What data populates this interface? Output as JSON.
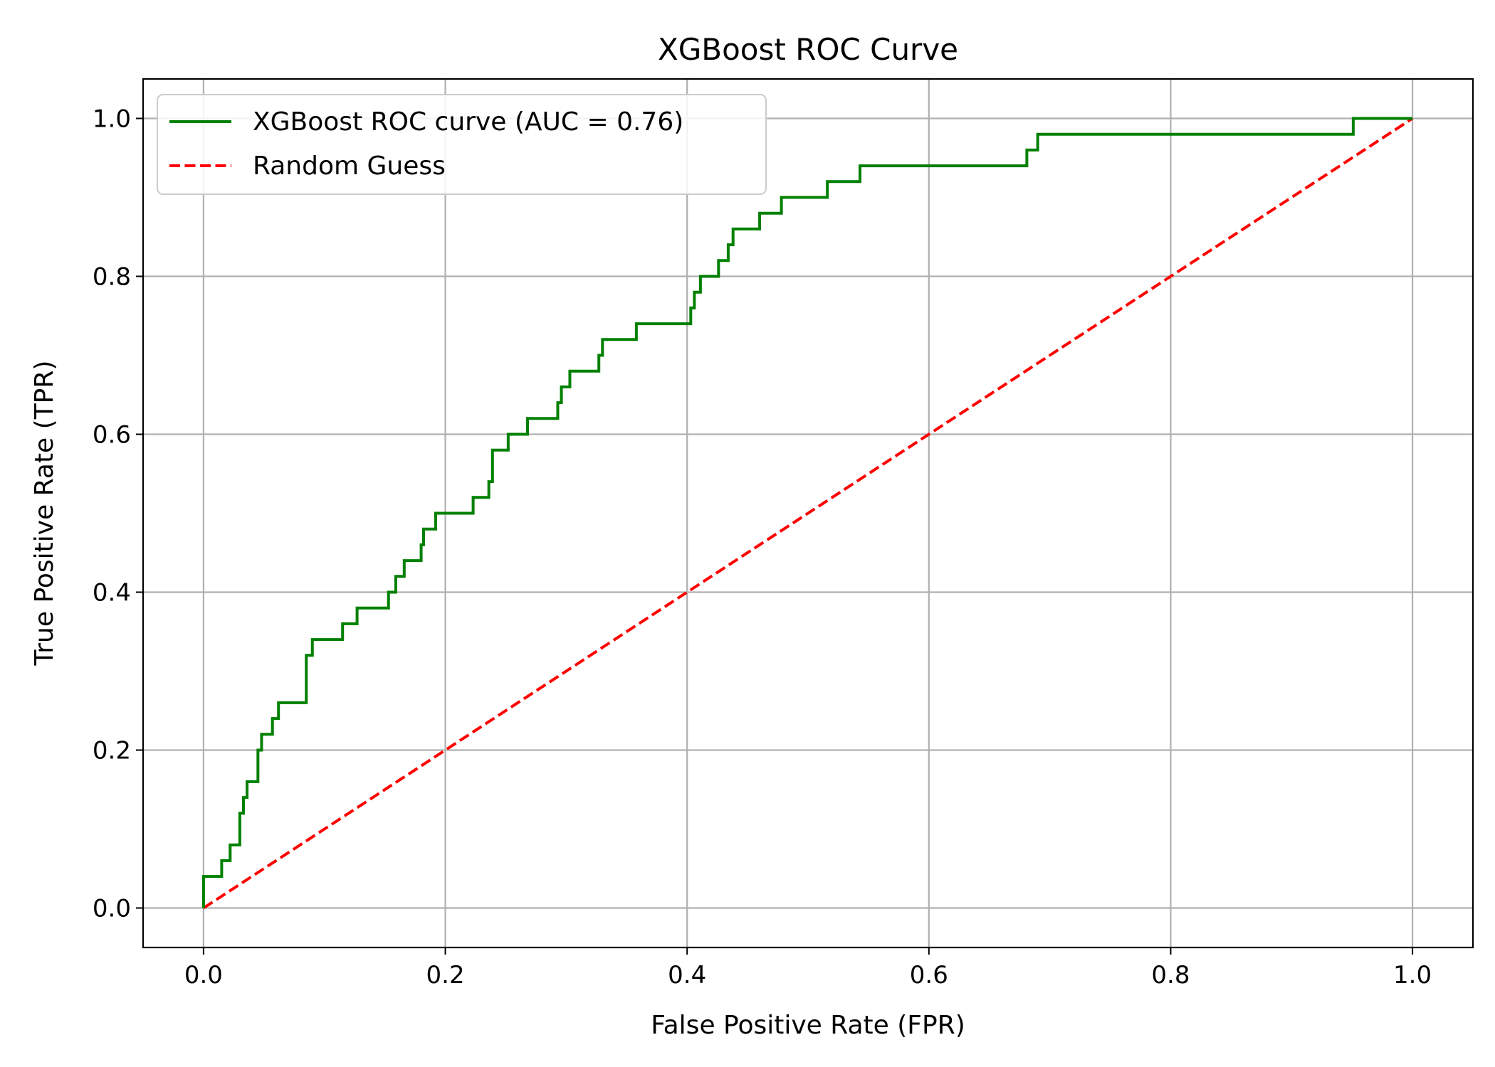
{
  "chart_data": {
    "type": "line",
    "title": "XGBoost ROC Curve",
    "xlabel": "False Positive Rate (FPR)",
    "ylabel": "True Positive Rate (TPR)",
    "xlim": [
      -0.05,
      1.05
    ],
    "ylim": [
      -0.05,
      1.05
    ],
    "xticks": [
      0.0,
      0.2,
      0.4,
      0.6,
      0.8,
      1.0
    ],
    "yticks": [
      0.0,
      0.2,
      0.4,
      0.6,
      0.8,
      1.0
    ],
    "xtick_labels": [
      "0.0",
      "0.2",
      "0.4",
      "0.6",
      "0.8",
      "1.0"
    ],
    "ytick_labels": [
      "0.0",
      "0.2",
      "0.4",
      "0.6",
      "0.8",
      "1.0"
    ],
    "grid": true,
    "legend": "top-left",
    "series": [
      {
        "name": "XGBoost ROC curve (AUC = 0.76)",
        "color": "#008000",
        "style": "solid",
        "x": [
          0.0,
          0.0,
          0.015,
          0.015,
          0.022,
          0.022,
          0.03,
          0.03,
          0.033,
          0.033,
          0.036,
          0.036,
          0.045,
          0.045,
          0.048,
          0.048,
          0.057,
          0.057,
          0.062,
          0.062,
          0.085,
          0.085,
          0.09,
          0.09,
          0.115,
          0.115,
          0.127,
          0.127,
          0.153,
          0.153,
          0.159,
          0.159,
          0.166,
          0.166,
          0.18,
          0.18,
          0.182,
          0.182,
          0.192,
          0.192,
          0.223,
          0.223,
          0.236,
          0.236,
          0.239,
          0.239,
          0.252,
          0.252,
          0.268,
          0.268,
          0.293,
          0.293,
          0.296,
          0.296,
          0.303,
          0.303,
          0.327,
          0.327,
          0.33,
          0.33,
          0.358,
          0.358,
          0.403,
          0.403,
          0.406,
          0.406,
          0.411,
          0.411,
          0.426,
          0.426,
          0.434,
          0.434,
          0.438,
          0.438,
          0.46,
          0.46,
          0.478,
          0.478,
          0.516,
          0.516,
          0.543,
          0.543,
          0.681,
          0.681,
          0.69,
          0.69,
          0.951,
          0.951,
          1.0
        ],
        "y": [
          0.0,
          0.04,
          0.04,
          0.06,
          0.06,
          0.08,
          0.08,
          0.12,
          0.12,
          0.14,
          0.14,
          0.16,
          0.16,
          0.2,
          0.2,
          0.22,
          0.22,
          0.24,
          0.24,
          0.26,
          0.26,
          0.32,
          0.32,
          0.34,
          0.34,
          0.36,
          0.36,
          0.38,
          0.38,
          0.4,
          0.4,
          0.42,
          0.42,
          0.44,
          0.44,
          0.46,
          0.46,
          0.48,
          0.48,
          0.5,
          0.5,
          0.52,
          0.52,
          0.54,
          0.54,
          0.58,
          0.58,
          0.6,
          0.6,
          0.62,
          0.62,
          0.64,
          0.64,
          0.66,
          0.66,
          0.68,
          0.68,
          0.7,
          0.7,
          0.72,
          0.72,
          0.74,
          0.74,
          0.76,
          0.76,
          0.78,
          0.78,
          0.8,
          0.8,
          0.82,
          0.82,
          0.84,
          0.84,
          0.86,
          0.86,
          0.88,
          0.88,
          0.9,
          0.9,
          0.92,
          0.92,
          0.94,
          0.94,
          0.96,
          0.96,
          0.98,
          0.98,
          1.0,
          1.0
        ]
      },
      {
        "name": "Random Guess",
        "color": "#ff0000",
        "style": "dashed",
        "x": [
          0.0,
          1.0
        ],
        "y": [
          0.0,
          1.0
        ]
      }
    ]
  }
}
